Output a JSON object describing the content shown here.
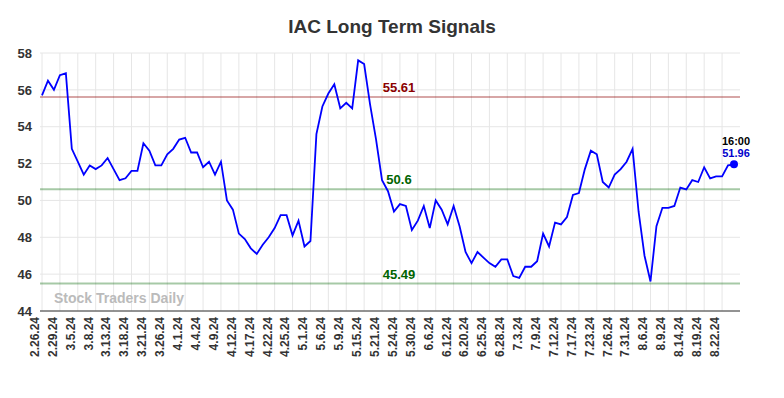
{
  "chart_data": {
    "type": "line",
    "title": "IAC Long Term Signals",
    "categories": [
      "2.26.24",
      null,
      null,
      "2.29.24",
      null,
      null,
      "3.5.24",
      null,
      null,
      "3.8.24",
      null,
      null,
      "3.13.24",
      null,
      null,
      "3.18.24",
      null,
      null,
      "3.21.24",
      null,
      null,
      "3.26.24",
      null,
      null,
      "4.1.24",
      null,
      null,
      "4.4.24",
      null,
      null,
      "4.9.24",
      null,
      null,
      "4.12.24",
      null,
      null,
      "4.17.24",
      null,
      null,
      "4.22.24",
      null,
      null,
      "4.25.24",
      null,
      null,
      "5.1.24",
      null,
      null,
      "5.6.24",
      null,
      null,
      "5.9.24",
      null,
      null,
      "5.15.24",
      null,
      null,
      "5.21.24",
      null,
      null,
      "5.24.24",
      null,
      null,
      "5.30.24",
      null,
      null,
      "6.6.24",
      null,
      null,
      "6.12.24",
      null,
      null,
      "6.20.24",
      null,
      null,
      "6.25.24",
      null,
      null,
      "6.28.24",
      null,
      null,
      "7.3.24",
      null,
      null,
      "7.9.24",
      null,
      null,
      "7.12.24",
      null,
      null,
      "7.17.24",
      null,
      null,
      "7.23.24",
      null,
      null,
      "7.26.24",
      null,
      null,
      "7.31.24",
      null,
      null,
      "8.6.24",
      null,
      null,
      "8.9.24",
      null,
      null,
      "8.14.24",
      null,
      null,
      "8.19.24",
      null,
      null,
      "8.22.24",
      null,
      null
    ],
    "values": [
      55.7,
      56.5,
      56.0,
      56.8,
      56.9,
      52.8,
      52.1,
      51.4,
      51.9,
      51.7,
      51.9,
      52.3,
      51.7,
      51.1,
      51.2,
      51.6,
      51.6,
      53.1,
      52.7,
      51.9,
      51.9,
      52.5,
      52.8,
      53.3,
      53.4,
      52.6,
      52.6,
      51.8,
      52.1,
      51.4,
      52.1,
      50.0,
      49.5,
      48.2,
      47.9,
      47.4,
      47.1,
      47.6,
      48.0,
      48.5,
      49.2,
      49.2,
      48.1,
      48.9,
      47.5,
      47.8,
      53.6,
      55.1,
      55.8,
      56.3,
      55.0,
      55.3,
      55.0,
      57.6,
      57.4,
      55.2,
      53.3,
      51.1,
      50.5,
      49.4,
      49.8,
      49.7,
      48.4,
      48.9,
      49.7,
      48.5,
      50.0,
      49.5,
      48.7,
      49.7,
      48.6,
      47.2,
      46.6,
      47.2,
      46.9,
      46.6,
      46.4,
      46.8,
      46.8,
      45.9,
      45.8,
      46.4,
      46.4,
      46.7,
      48.2,
      47.5,
      48.8,
      48.7,
      49.1,
      50.3,
      50.4,
      51.7,
      52.7,
      52.5,
      51.0,
      50.7,
      51.4,
      51.7,
      52.1,
      52.8,
      49.4,
      47.0,
      45.6,
      48.6,
      49.6,
      49.6,
      49.7,
      50.7,
      50.6,
      51.1,
      51.0,
      51.8,
      51.2,
      51.3,
      51.3,
      51.9,
      51.96
    ],
    "color": "#0000ff",
    "ylim": [
      44,
      58
    ],
    "yticks": [
      44,
      46,
      48,
      50,
      52,
      54,
      56,
      58
    ],
    "grid": true,
    "signals": [
      {
        "value": 55.61,
        "label": "55.61",
        "color": "#8b0000"
      },
      {
        "value": 50.6,
        "label": "50.6",
        "color": "#006400"
      },
      {
        "value": 45.49,
        "label": "45.49",
        "color": "#006400"
      }
    ],
    "last_point": {
      "time": "16:00",
      "value": 51.96,
      "color": "#0000cc"
    },
    "watermark": "Stock Traders Daily"
  }
}
